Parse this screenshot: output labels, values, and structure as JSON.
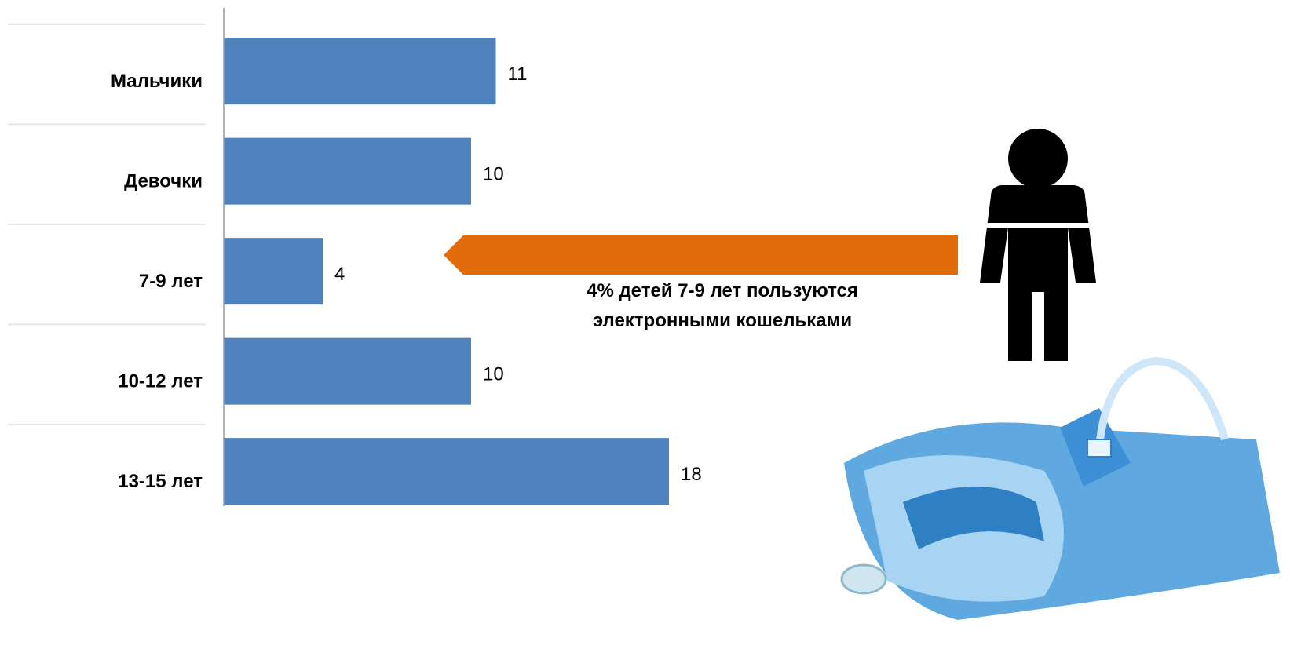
{
  "chart_data": {
    "type": "bar",
    "orientation": "horizontal",
    "categories": [
      "Мальчики",
      "Девочки",
      "7-9 лет",
      "10-12 лет",
      "13-15 лет"
    ],
    "values": [
      11,
      10,
      4,
      10,
      18
    ],
    "color": "#4f81bd",
    "annotation": "4% детей 7-9 лет пользуются электронными кошельками",
    "annotation_color": "#e36c0a"
  }
}
